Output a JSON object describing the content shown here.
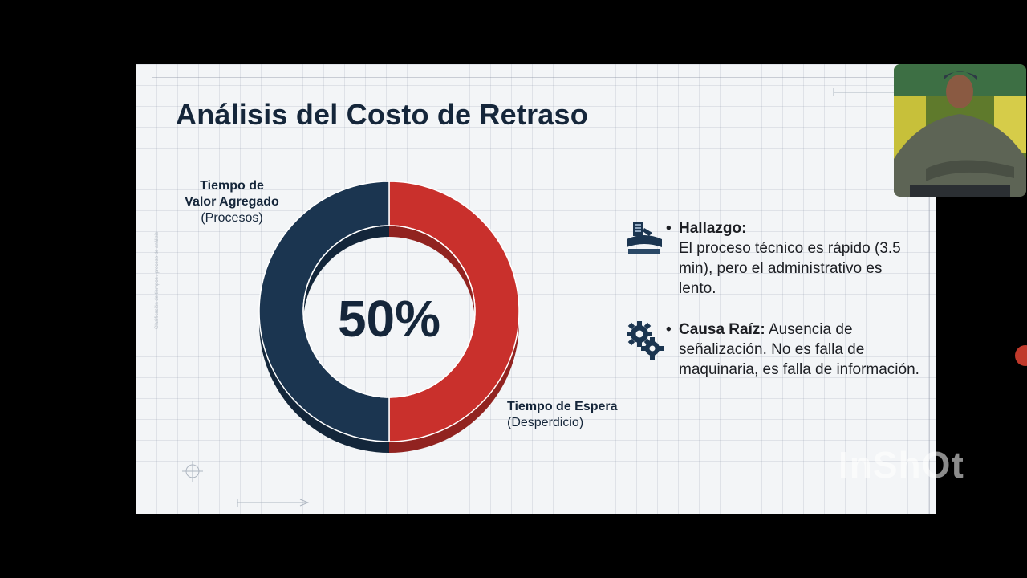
{
  "slide": {
    "title": "Análisis del Costo de Retraso",
    "side_note": "Clasificación de tiempos / proceso de análisis"
  },
  "chart_data": {
    "type": "pie",
    "style": "donut",
    "center_label": "50%",
    "slices": [
      {
        "name": "Tiempo de Valor Agregado (Procesos)",
        "value": 50,
        "color": "#1b3550"
      },
      {
        "name": "Tiempo de Espera (Desperdicio)",
        "value": 50,
        "color": "#c9302c"
      }
    ],
    "labels": {
      "value_added": {
        "title": "Tiempo de Valor Agregado",
        "sub": "(Procesos)"
      },
      "waiting": {
        "title": "Tiempo de Espera",
        "sub": "(Desperdicio)"
      }
    }
  },
  "findings": [
    {
      "icon": "reception-desk-icon",
      "title": "Hallazgo:",
      "text": "El proceso técnico es rápido (3.5 min), pero el administrativo es lento."
    },
    {
      "icon": "gears-icon",
      "title": "Causa Raíz:",
      "text": "Ausencia de señalización. No es falla de maquinaria, es falla de información."
    }
  ],
  "overlay": {
    "watermark": "InShOt"
  },
  "colors": {
    "navy": "#1b3550",
    "red": "#c9302c",
    "title": "#15263a"
  }
}
